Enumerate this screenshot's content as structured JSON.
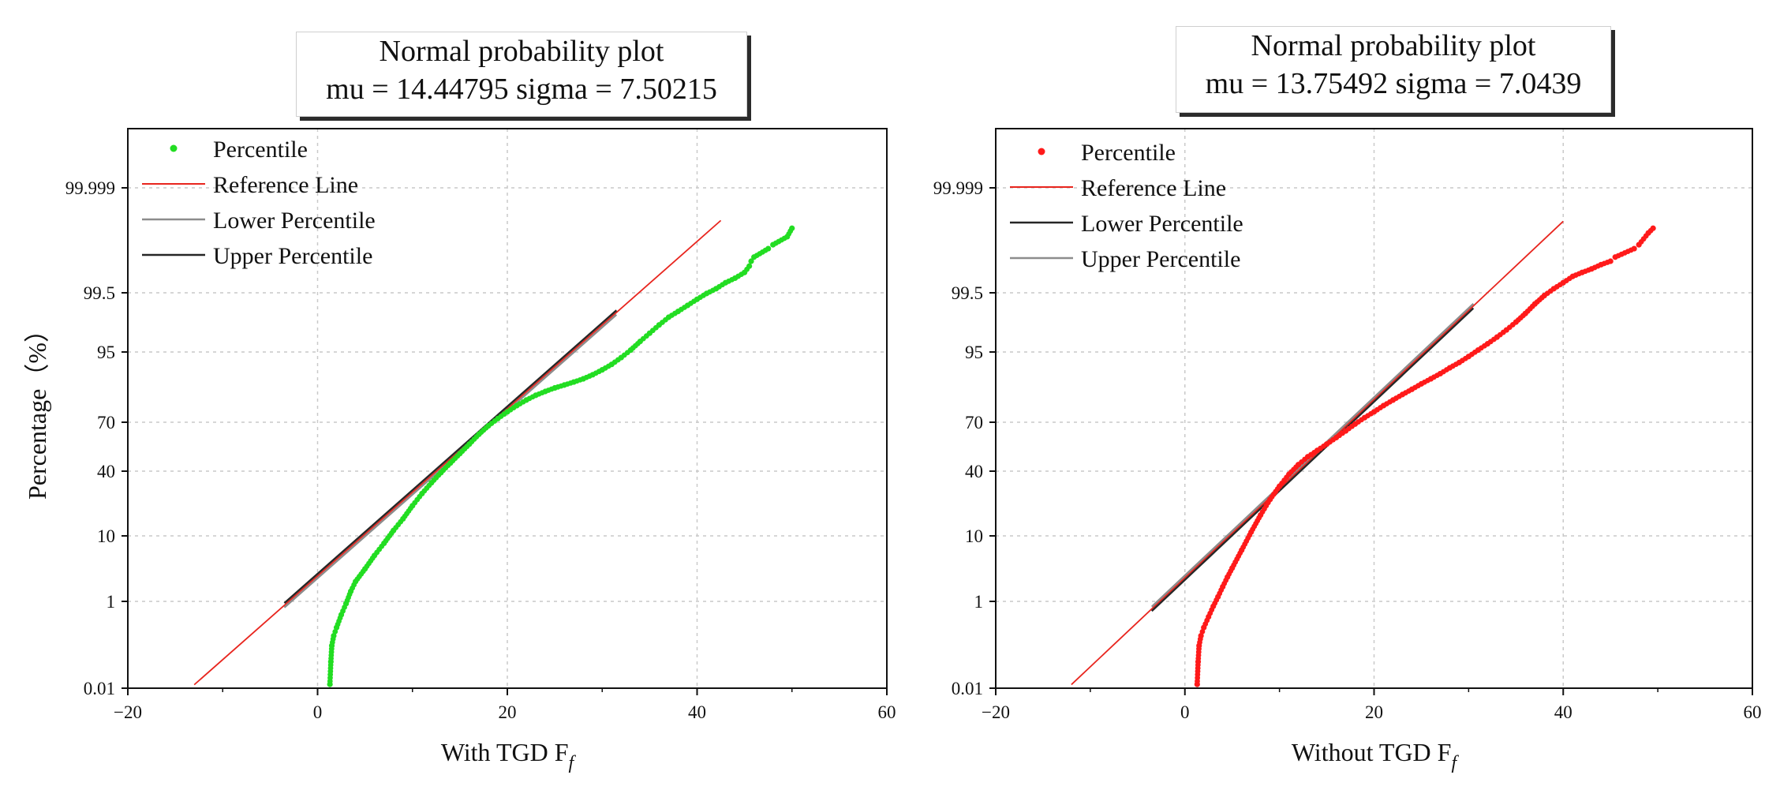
{
  "chart_data": [
    {
      "type": "scatter",
      "title": "Normal probability plot",
      "subtitle": "mu = 14.44795  sigma = 7.50215",
      "xlabel": "With TGD F",
      "xlabel_sub": "f",
      "ylabel": "Percentage（%）",
      "xlim": [
        -20,
        60
      ],
      "x_ticks": [
        -20,
        0,
        20,
        40,
        60
      ],
      "y_ticks": [
        "0.01",
        "1",
        "10",
        "40",
        "70",
        "95",
        "99.5",
        "99.999"
      ],
      "grid": true,
      "legend_position": "top-left",
      "mu": 14.44795,
      "sigma": 7.50215,
      "marker_color": "#22dd22",
      "legend": [
        "Percentile",
        "Reference Line",
        "Lower Percentile",
        "Upper Percentile"
      ],
      "series": [
        {
          "name": "Percentile",
          "kind": "points",
          "color": "#22dd22",
          "points": [
            [
              1.3,
              0.013
            ],
            [
              1.4,
              0.05
            ],
            [
              1.5,
              0.12
            ],
            [
              1.7,
              0.2
            ],
            [
              2.0,
              0.3
            ],
            [
              2.5,
              0.55
            ],
            [
              3.0,
              0.9
            ],
            [
              3.5,
              1.5
            ],
            [
              4.0,
              2.2
            ],
            [
              5.0,
              3.5
            ],
            [
              6.0,
              5.5
            ],
            [
              7.0,
              8.0
            ],
            [
              8.0,
              11.5
            ],
            [
              9.0,
              15.5
            ],
            [
              10.0,
              21
            ],
            [
              11.0,
              27
            ],
            [
              12.0,
              33
            ],
            [
              13.0,
              39
            ],
            [
              14.0,
              45
            ],
            [
              15.0,
              51
            ],
            [
              16.0,
              57
            ],
            [
              17.0,
              63
            ],
            [
              18.0,
              68
            ],
            [
              19.0,
              72
            ],
            [
              20.0,
              75.5
            ],
            [
              21.0,
              78.5
            ],
            [
              22.0,
              81
            ],
            [
              23.0,
              83
            ],
            [
              24.0,
              84.5
            ],
            [
              25.0,
              85.8
            ],
            [
              26.0,
              86.8
            ],
            [
              27.0,
              87.8
            ],
            [
              28.0,
              88.8
            ],
            [
              29.0,
              90
            ],
            [
              30.0,
              91.3
            ],
            [
              31.0,
              92.6
            ],
            [
              32.0,
              94
            ],
            [
              33.0,
              95.3
            ],
            [
              34.0,
              96.5
            ],
            [
              35.0,
              97.4
            ],
            [
              36.0,
              98.1
            ],
            [
              37.0,
              98.6
            ],
            [
              38.0,
              98.9
            ],
            [
              39.0,
              99.15
            ],
            [
              40.0,
              99.35
            ],
            [
              41.0,
              99.5
            ],
            [
              42.0,
              99.6
            ],
            [
              43.0,
              99.7
            ],
            [
              44.0,
              99.76
            ],
            [
              45.0,
              99.82
            ],
            [
              45.5,
              99.87
            ],
            [
              45.7,
              99.9
            ],
            [
              46.0,
              99.92
            ],
            [
              47.5,
              99.95
            ],
            [
              48.0,
              99.96
            ],
            [
              49.5,
              99.975
            ],
            [
              50.0,
              99.985
            ]
          ]
        },
        {
          "name": "Reference Line",
          "kind": "reference",
          "color": "#e8251e",
          "x_start": -13,
          "x_end": 42.5
        },
        {
          "name": "Lower Percentile",
          "kind": "percentile",
          "color": "#8c8c8c",
          "x_start": -3.5,
          "x_end": 31.5
        },
        {
          "name": "Upper Percentile",
          "kind": "percentile",
          "color": "#262626",
          "x_start": -3.5,
          "x_end": 31.5
        }
      ]
    },
    {
      "type": "scatter",
      "title": "Normal probability plot",
      "subtitle": "mu = 13.75492  sigma = 7.0439",
      "xlabel": "Without TGD F",
      "xlabel_sub": "f",
      "ylabel": "",
      "xlim": [
        -20,
        60
      ],
      "x_ticks": [
        -20,
        0,
        20,
        40,
        60
      ],
      "y_ticks": [
        "0.01",
        "1",
        "10",
        "40",
        "70",
        "95",
        "99.5",
        "99.999"
      ],
      "grid": true,
      "legend_position": "top-left",
      "mu": 13.75492,
      "sigma": 7.0439,
      "marker_color": "#ff1a1a",
      "legend": [
        "Percentile",
        "Reference Line",
        "Lower Percentile",
        "Upper Percentile"
      ],
      "series": [
        {
          "name": "Percentile",
          "kind": "points",
          "color": "#ff1a1a",
          "points": [
            [
              1.3,
              0.013
            ],
            [
              1.4,
              0.05
            ],
            [
              1.5,
              0.12
            ],
            [
              1.7,
              0.2
            ],
            [
              2.0,
              0.3
            ],
            [
              2.5,
              0.5
            ],
            [
              3.0,
              0.8
            ],
            [
              3.5,
              1.2
            ],
            [
              4.0,
              1.8
            ],
            [
              4.5,
              2.6
            ],
            [
              5.0,
              3.6
            ],
            [
              6.0,
              6.5
            ],
            [
              7.0,
              11
            ],
            [
              8.0,
              17
            ],
            [
              9.0,
              24
            ],
            [
              10.0,
              31
            ],
            [
              11.0,
              38
            ],
            [
              12.0,
              44
            ],
            [
              13.0,
              49
            ],
            [
              14.0,
              53
            ],
            [
              15.0,
              57
            ],
            [
              16.0,
              61
            ],
            [
              17.0,
              65
            ],
            [
              18.0,
              69
            ],
            [
              19.0,
              72.5
            ],
            [
              20.0,
              75.5
            ],
            [
              21.0,
              78.5
            ],
            [
              22.0,
              81
            ],
            [
              23.0,
              83.3
            ],
            [
              24.0,
              85.3
            ],
            [
              25.0,
              87.2
            ],
            [
              26.0,
              88.8
            ],
            [
              27.0,
              90.3
            ],
            [
              28.0,
              91.8
            ],
            [
              29.0,
              93
            ],
            [
              30.0,
              94.2
            ],
            [
              31.0,
              95.3
            ],
            [
              32.0,
              96.2
            ],
            [
              33.0,
              97
            ],
            [
              34.0,
              97.7
            ],
            [
              35.0,
              98.3
            ],
            [
              36.0,
              98.8
            ],
            [
              37.0,
              99.2
            ],
            [
              38.0,
              99.45
            ],
            [
              39.0,
              99.6
            ],
            [
              40.0,
              99.7
            ],
            [
              41.0,
              99.78
            ],
            [
              42.0,
              99.82
            ],
            [
              43.0,
              99.85
            ],
            [
              44.0,
              99.88
            ],
            [
              45.0,
              99.9
            ],
            [
              45.5,
              99.92
            ],
            [
              47.5,
              99.95
            ],
            [
              48.0,
              99.96
            ],
            [
              49.0,
              99.98
            ],
            [
              49.5,
              99.985
            ]
          ]
        },
        {
          "name": "Reference Line",
          "kind": "reference",
          "color": "#e8251e",
          "x_start": -12,
          "x_end": 40
        },
        {
          "name": "Lower Percentile",
          "kind": "percentile",
          "color": "#262626",
          "x_start": -3.5,
          "x_end": 30.5
        },
        {
          "name": "Upper Percentile",
          "kind": "percentile",
          "color": "#8c8c8c",
          "x_start": -3.5,
          "x_end": 30.5
        }
      ]
    }
  ]
}
